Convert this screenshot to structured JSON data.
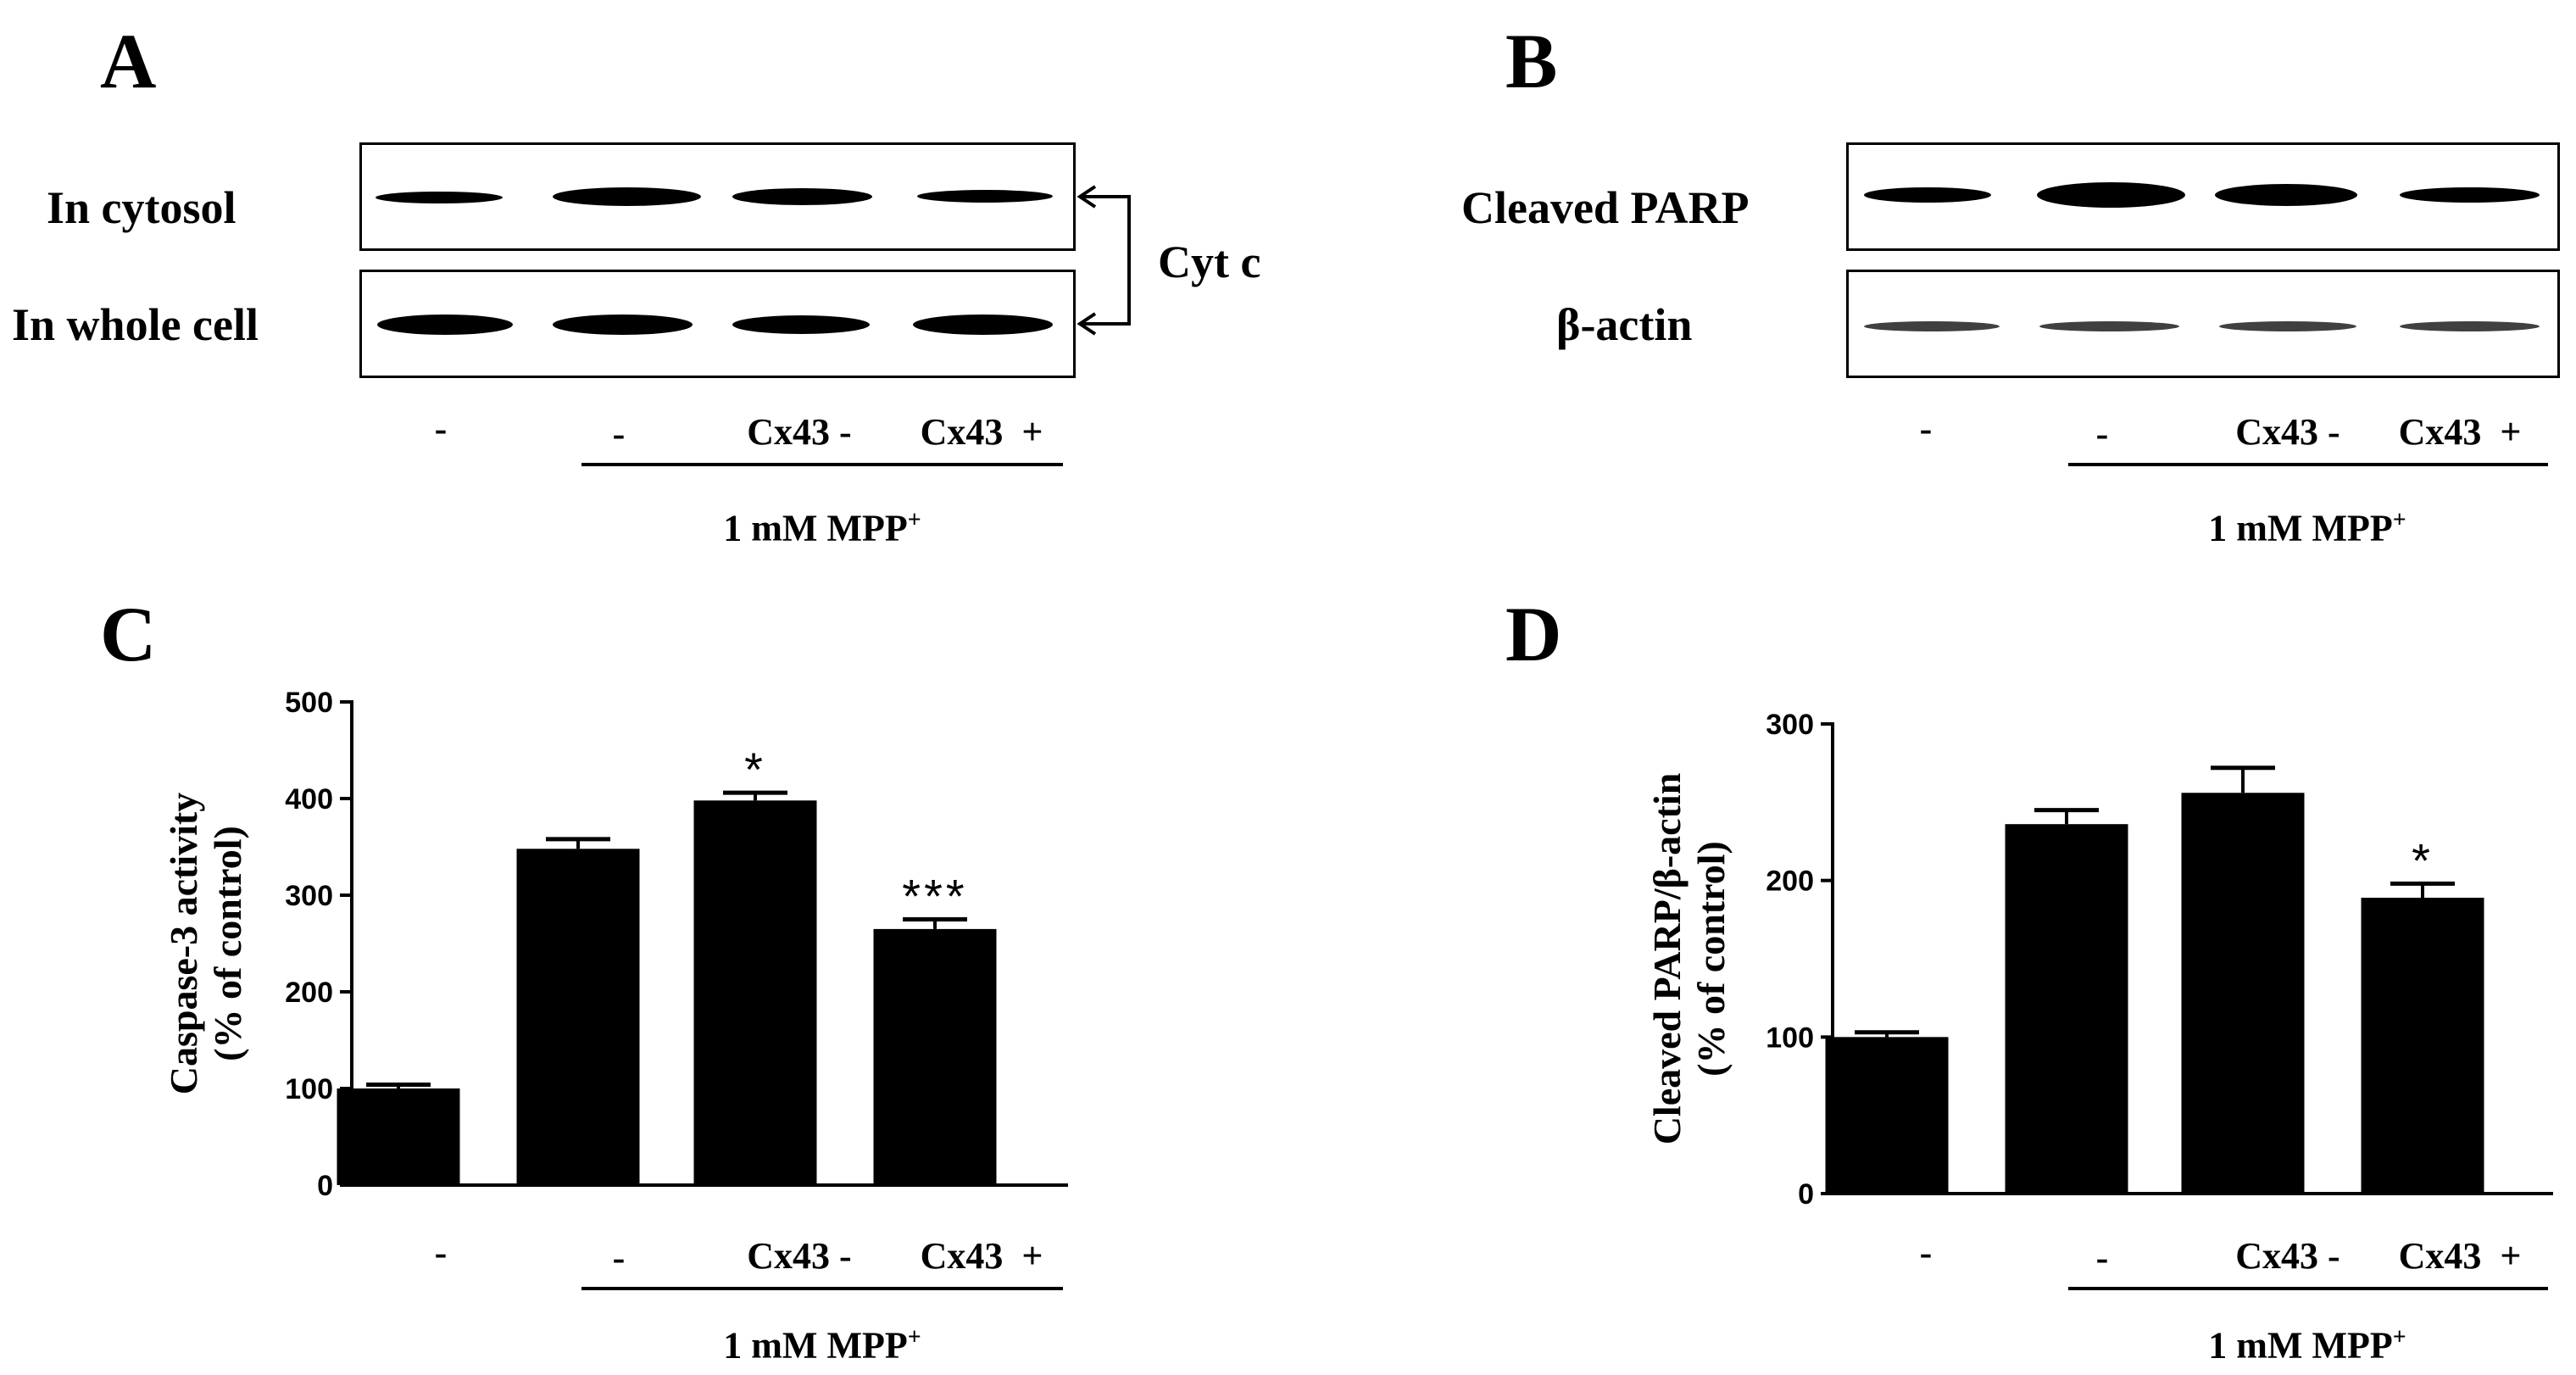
{
  "panels": {
    "A": {
      "letter": "A",
      "row_labels": [
        "In cytosol",
        "In whole cell"
      ],
      "bracket_label": "Cyt c",
      "conditions": [
        "-",
        "-",
        "Cx43 -",
        "Cx43  +"
      ],
      "treatment": "1 mM MPP",
      "treatment_sup": "+",
      "band_intensity": {
        "cytosol": [
          0.08,
          0.95,
          0.85,
          0.6
        ],
        "whole_cell": [
          0.95,
          0.95,
          0.92,
          0.95
        ]
      }
    },
    "B": {
      "letter": "B",
      "row_labels": [
        "Cleaved PARP",
        "β-actin"
      ],
      "conditions": [
        "-",
        "-",
        "Cx43 -",
        "Cx43  +"
      ],
      "treatment": "1 mM MPP",
      "treatment_sup": "+",
      "band_intensity": {
        "parp": [
          0.75,
          1.0,
          0.9,
          0.75
        ],
        "actin": [
          0.6,
          0.6,
          0.6,
          0.6
        ]
      }
    },
    "C": {
      "letter": "C",
      "treatment": "1 mM MPP",
      "treatment_sup": "+"
    },
    "D": {
      "letter": "D",
      "treatment": "1 mM MPP",
      "treatment_sup": "+"
    }
  },
  "chart_data": [
    {
      "panel": "C",
      "type": "bar",
      "categories": [
        "-",
        "-",
        "Cx43 -",
        "Cx43  +"
      ],
      "values": [
        100,
        348,
        398,
        265
      ],
      "errors": [
        4,
        10,
        8,
        10
      ],
      "significance": [
        "",
        "",
        "*",
        "***"
      ],
      "ylabel_lines": [
        "Caspase-3 activity",
        "(% of control)"
      ],
      "ylim": [
        0,
        500
      ],
      "yticks": [
        0,
        100,
        200,
        300,
        400,
        500
      ],
      "color": "#000000"
    },
    {
      "panel": "D",
      "type": "bar",
      "categories": [
        "-",
        "-",
        "Cx43 -",
        "Cx43  +"
      ],
      "values": [
        100,
        236,
        256,
        189
      ],
      "errors": [
        3,
        9,
        16,
        9
      ],
      "significance": [
        "",
        "",
        "",
        "*"
      ],
      "ylabel_lines": [
        "Cleaved PARP/β-actin",
        "(% of control)"
      ],
      "ylim": [
        0,
        300
      ],
      "yticks": [
        0,
        100,
        200,
        300
      ],
      "color": "#000000"
    }
  ]
}
